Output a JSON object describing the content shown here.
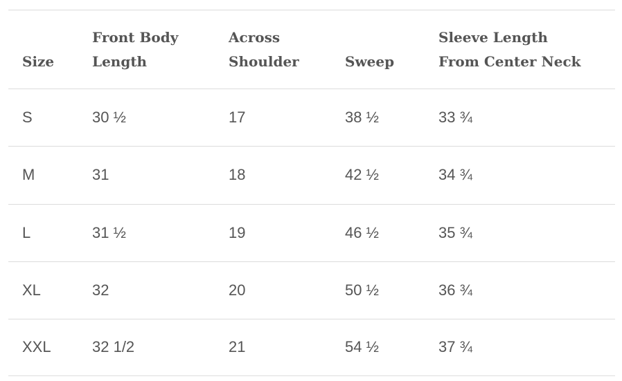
{
  "table": {
    "header": [
      [
        "Size"
      ],
      [
        "Front Body",
        "Length"
      ],
      [
        "Across",
        "Shoulder"
      ],
      [
        "Sweep"
      ],
      [
        "Sleeve Length",
        "From Center Neck"
      ]
    ],
    "rows": [
      [
        "S",
        "30 ½",
        "17",
        "38 ½",
        "33 ¾"
      ],
      [
        "M",
        "31",
        "18",
        "42 ½",
        "34 ¾"
      ],
      [
        "L",
        "31 ½",
        "19",
        "46 ½",
        "35 ¾"
      ],
      [
        "XL",
        "32",
        "20",
        "50 ½",
        "36 ¾"
      ],
      [
        "XXL",
        "32 1/2",
        "21",
        "54 ½",
        "37 ¾"
      ]
    ]
  }
}
